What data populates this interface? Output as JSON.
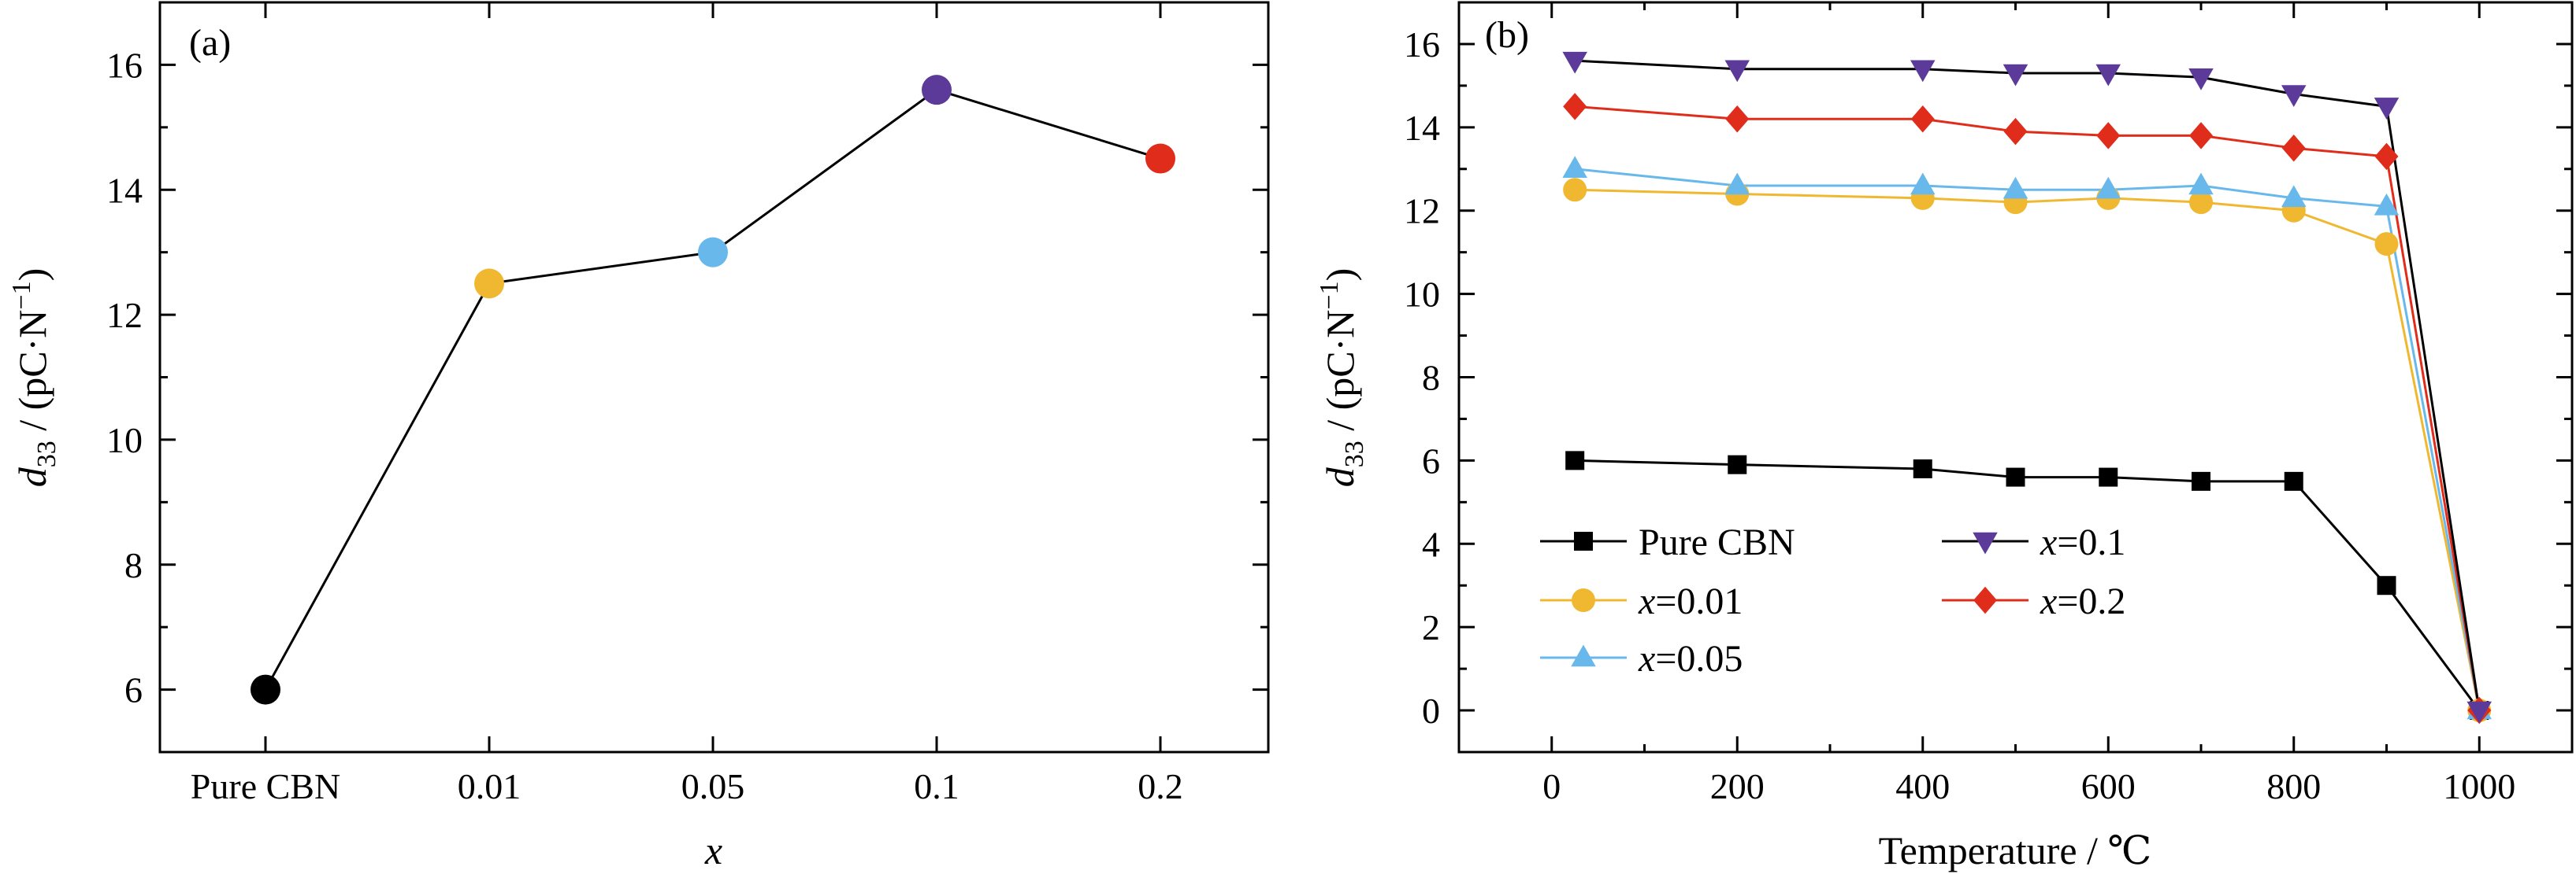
{
  "chart_data": [
    {
      "panel_label": "(a)",
      "type": "scatter",
      "categories": [
        "Pure CBN",
        "0.01",
        "0.05",
        "0.1",
        "0.2"
      ],
      "values": [
        6.0,
        12.5,
        13.0,
        15.6,
        14.5
      ],
      "point_colors": [
        "#000000",
        "#F0B830",
        "#68B8EC",
        "#5B3A99",
        "#E02D1B"
      ],
      "line_color": "#000000",
      "xlabel": "x",
      "ylabel_parts": {
        "main": "d",
        "sub": "33",
        "unit": " / (pC·N",
        "sup": "−1",
        "end": ")"
      },
      "ylim": [
        5,
        17
      ],
      "yticks": [
        6,
        8,
        10,
        12,
        14,
        16
      ],
      "grid": false
    },
    {
      "panel_label": "(b)",
      "type": "line",
      "x": [
        25,
        200,
        400,
        500,
        600,
        700,
        800,
        900,
        1000
      ],
      "series": [
        {
          "name": "Pure CBN",
          "label_prefix": "",
          "label_value": "Pure CBN",
          "color": "#000000",
          "line_color": "#000000",
          "marker": "square",
          "values": [
            6.0,
            5.9,
            5.8,
            5.6,
            5.6,
            5.5,
            5.5,
            3.0,
            0.0
          ]
        },
        {
          "name": "x=0.1",
          "label_prefix": "x",
          "label_value": "=0.1",
          "color": "#5B3A99",
          "line_color": "#000000",
          "marker": "triangle-down",
          "values": [
            15.6,
            15.4,
            15.4,
            15.3,
            15.3,
            15.2,
            14.8,
            14.5,
            0.0
          ]
        },
        {
          "name": "x=0.01",
          "label_prefix": "x",
          "label_value": "=0.01",
          "color": "#F0B830",
          "line_color": "#F0B830",
          "marker": "circle",
          "values": [
            12.5,
            12.4,
            12.3,
            12.2,
            12.3,
            12.2,
            12.0,
            11.2,
            0.0
          ]
        },
        {
          "name": "x=0.2",
          "label_prefix": "x",
          "label_value": "=0.2",
          "color": "#E02D1B",
          "line_color": "#E02D1B",
          "marker": "diamond",
          "values": [
            14.5,
            14.2,
            14.2,
            13.9,
            13.8,
            13.8,
            13.5,
            13.3,
            0.0
          ]
        },
        {
          "name": "x=0.05",
          "label_prefix": "x",
          "label_value": "=0.05",
          "color": "#68B8EC",
          "line_color": "#68B8EC",
          "marker": "triangle-up",
          "values": [
            13.0,
            12.6,
            12.6,
            12.5,
            12.5,
            12.6,
            12.3,
            12.1,
            0.0
          ]
        }
      ],
      "xlabel": "Temperature / ℃",
      "ylabel_parts": {
        "main": "d",
        "sub": "33",
        "unit": " / (pC·N",
        "sup": "−1",
        "end": ")"
      },
      "xlim": [
        -100,
        1100
      ],
      "ylim": [
        -1,
        17
      ],
      "xticks": [
        0,
        200,
        400,
        600,
        800,
        1000
      ],
      "yticks": [
        0,
        2,
        4,
        6,
        8,
        10,
        12,
        14,
        16
      ],
      "legend_position": "lower-left",
      "grid": false
    }
  ]
}
